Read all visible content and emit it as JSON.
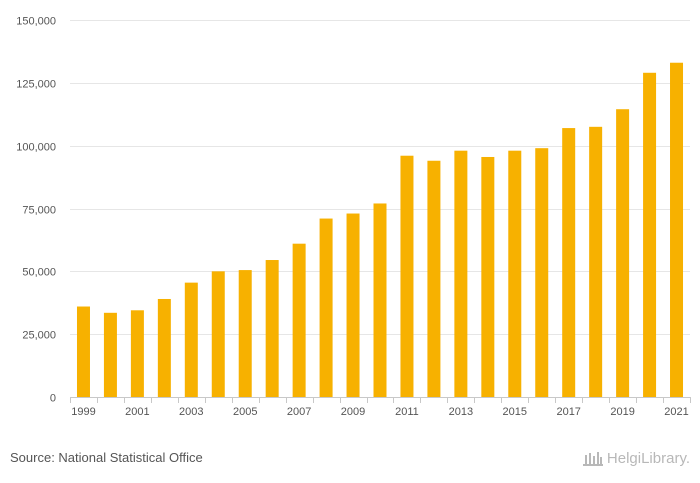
{
  "chart_data": {
    "type": "bar",
    "title": "",
    "xlabel": "",
    "ylabel": "",
    "categories": [
      "1999",
      "2000",
      "2001",
      "2002",
      "2003",
      "2004",
      "2005",
      "2006",
      "2007",
      "2008",
      "2009",
      "2010",
      "2011",
      "2012",
      "2013",
      "2014",
      "2015",
      "2016",
      "2017",
      "2018",
      "2019",
      "2020",
      "2021"
    ],
    "x_tick_labels": [
      "1999",
      "2001",
      "2003",
      "2005",
      "2007",
      "2009",
      "2011",
      "2013",
      "2015",
      "2017",
      "2019",
      "2021"
    ],
    "values": [
      36000,
      33500,
      34500,
      39000,
      45500,
      50000,
      50500,
      54500,
      61000,
      71000,
      73000,
      77000,
      96000,
      94000,
      98000,
      95500,
      98000,
      99000,
      107000,
      107500,
      114500,
      129000,
      133000
    ],
    "ylim": [
      0,
      150000
    ],
    "y_ticks": [
      0,
      25000,
      50000,
      75000,
      100000,
      125000,
      150000
    ],
    "y_tick_labels": [
      "0",
      "25,000",
      "50,000",
      "75,000",
      "100,000",
      "125,000",
      "150,000"
    ],
    "bar_color": "#F7B100",
    "grid": true,
    "legend": "none"
  },
  "footer": {
    "source": "Source: National Statistical Office",
    "logo_text": "HelgiLibrary."
  },
  "icons": {
    "logo": "library-building-icon"
  }
}
